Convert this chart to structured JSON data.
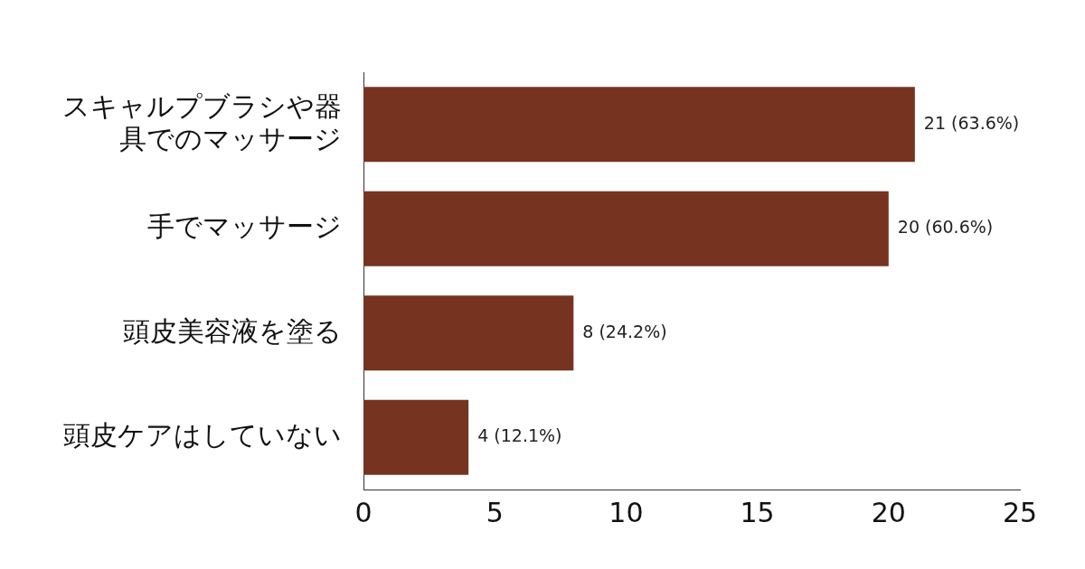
{
  "chart_data": {
    "type": "bar",
    "orientation": "horizontal",
    "categories": [
      "スキャルプブラシや器具でのマッサージ",
      "手でマッサージ",
      "頭皮美容液を塗る",
      "頭皮ケアはしていない"
    ],
    "values": [
      21,
      20,
      8,
      4
    ],
    "value_labels": [
      "21 (63.6%)",
      "20 (60.6%)",
      "8 (24.2%)",
      "4 (12.1%)"
    ],
    "color": "#76331f",
    "xlim": [
      0,
      25
    ],
    "xticks": [
      0,
      5,
      10,
      15,
      20,
      25
    ],
    "grid": false,
    "legend": false
  }
}
